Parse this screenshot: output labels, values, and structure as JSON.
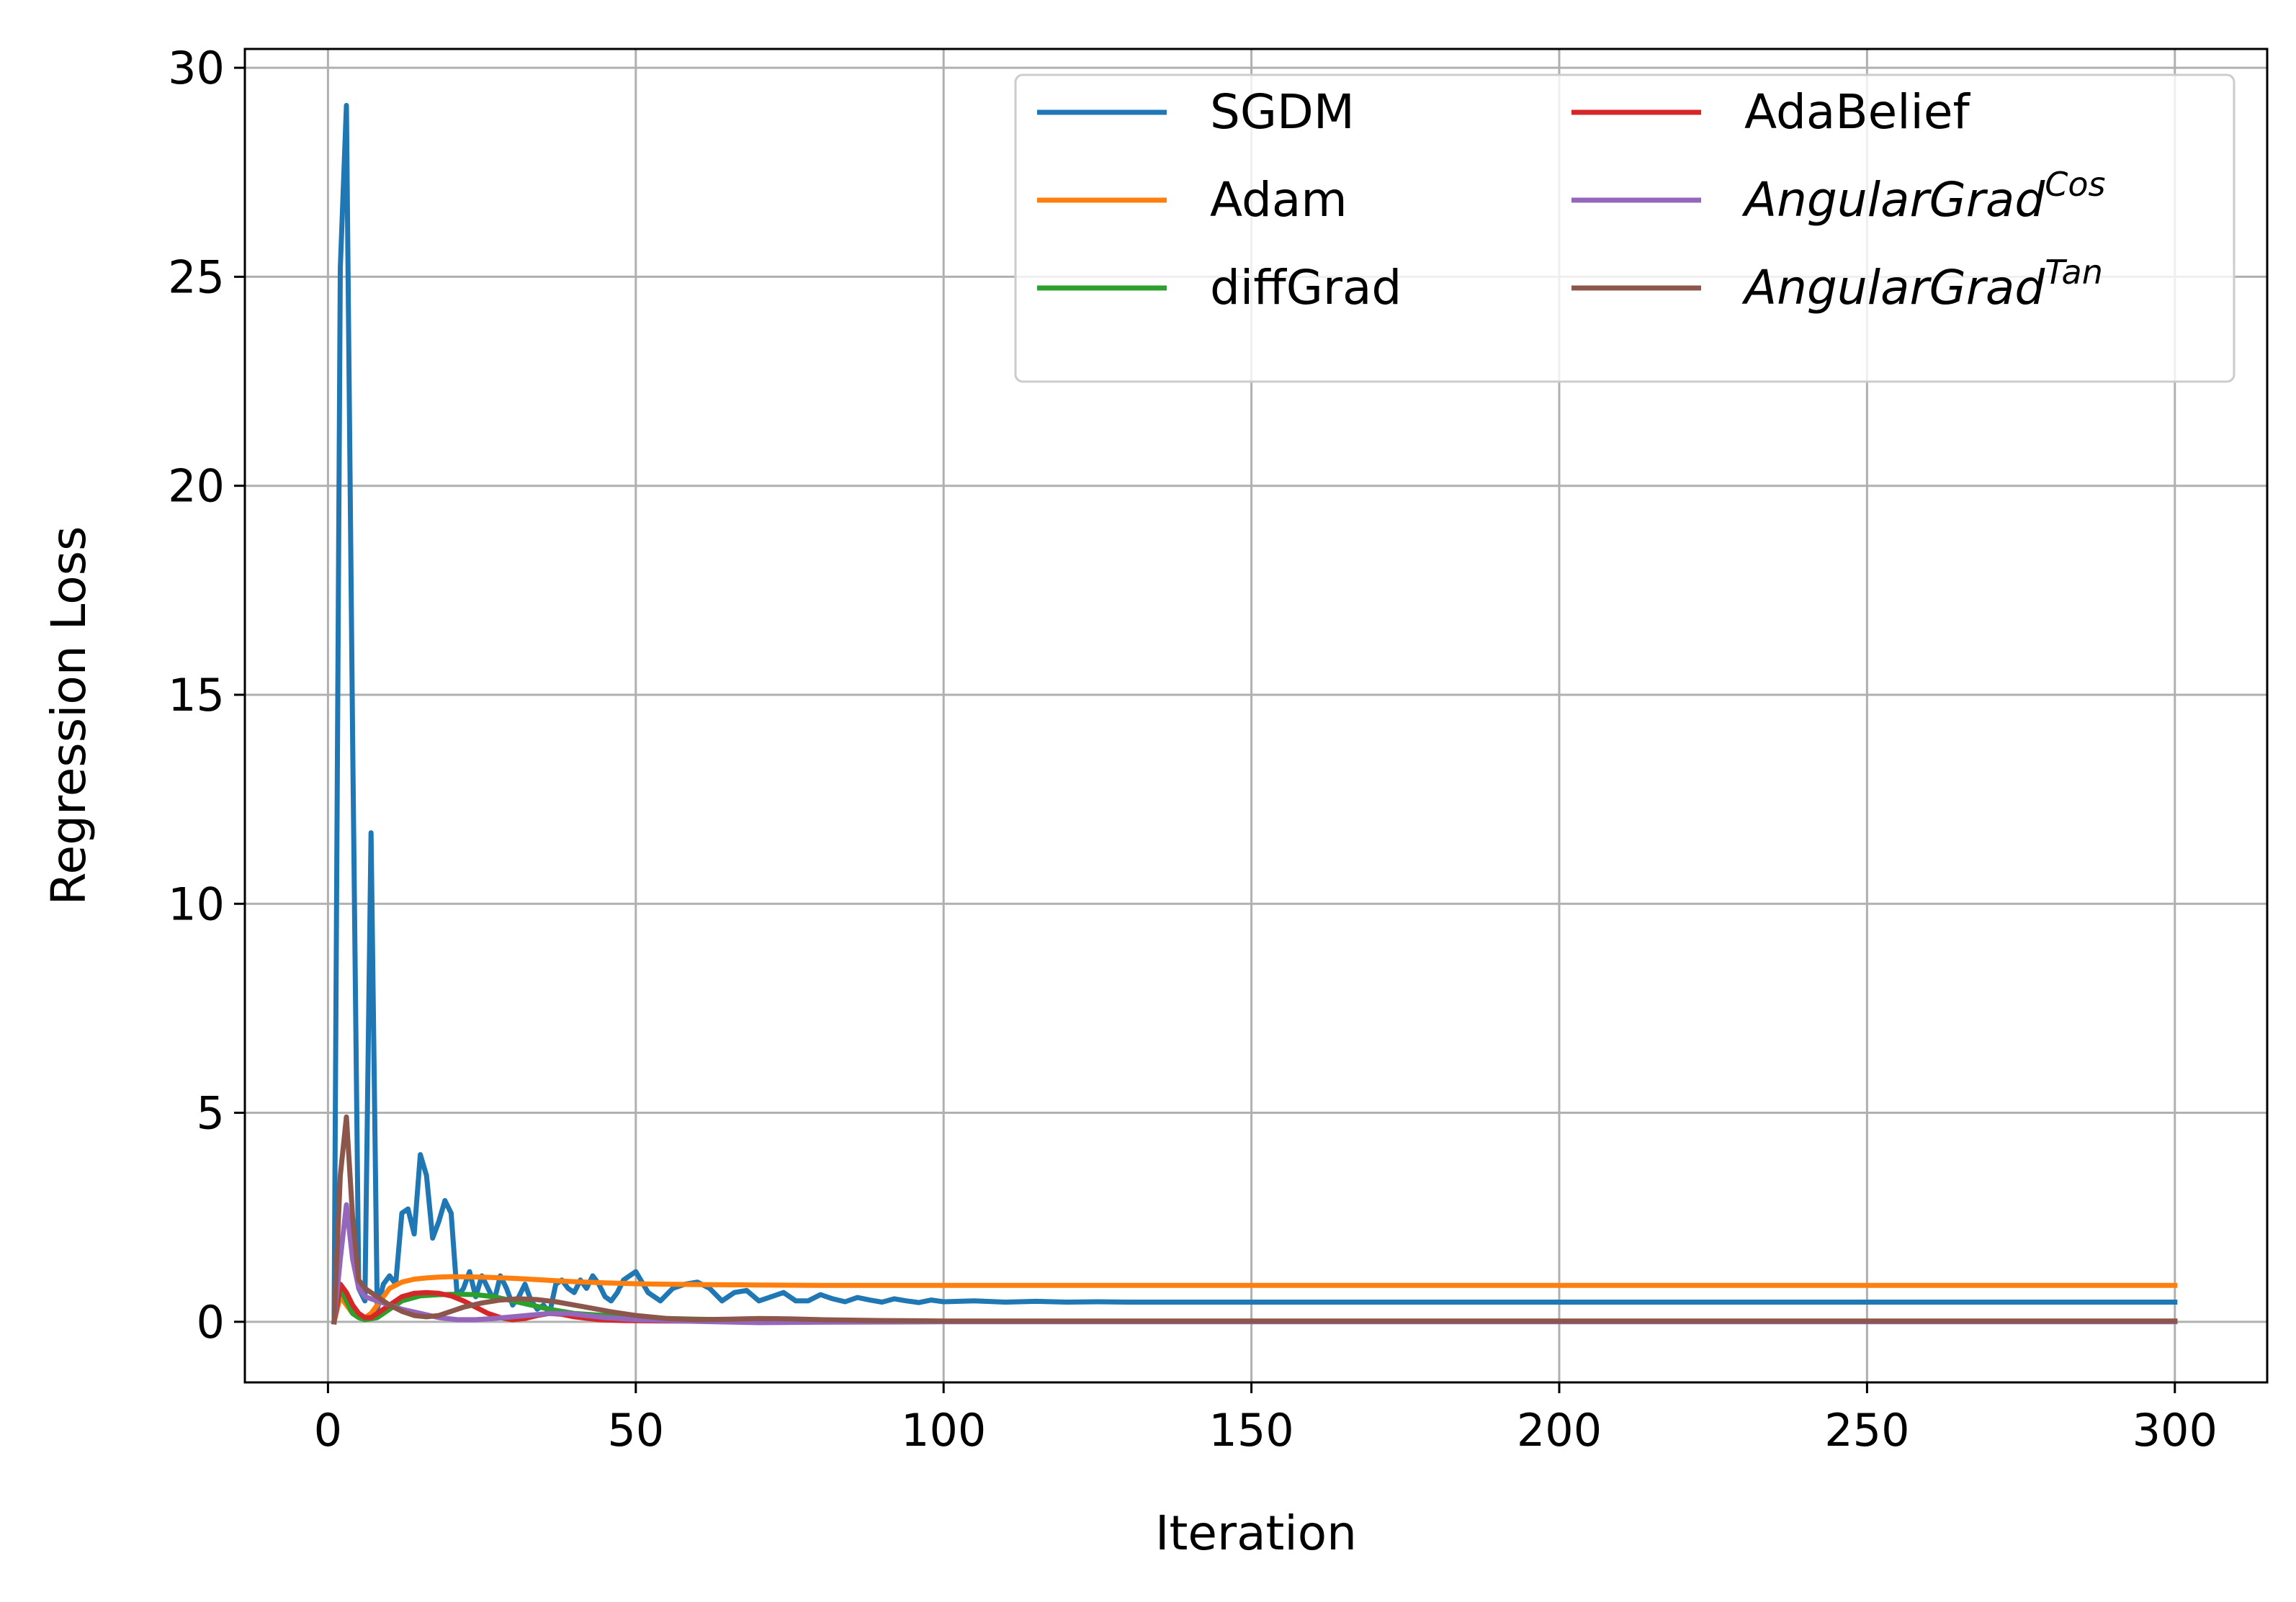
{
  "chart_data": {
    "type": "line",
    "title": "",
    "xlabel": "Iteration",
    "ylabel": "Regression Loss",
    "xlim": [
      -13.5,
      315
    ],
    "ylim": [
      -1.45,
      30.45
    ],
    "xticks": [
      0,
      50,
      100,
      150,
      200,
      250,
      300
    ],
    "yticks": [
      0,
      5,
      10,
      15,
      20,
      25,
      30
    ],
    "grid": true,
    "legend_position": "top-right",
    "legend_columns": 2,
    "series": [
      {
        "name": "SGDM",
        "color": "#1f77b4",
        "points": [
          [
            1,
            0
          ],
          [
            2,
            25.2
          ],
          [
            3,
            29.1
          ],
          [
            4,
            14
          ],
          [
            5,
            0.8
          ],
          [
            6,
            0.5
          ],
          [
            7,
            11.7
          ],
          [
            8,
            0.3
          ],
          [
            9,
            0.9
          ],
          [
            10,
            1.1
          ],
          [
            11,
            0.9
          ],
          [
            12,
            2.6
          ],
          [
            13,
            2.7
          ],
          [
            14,
            2.1
          ],
          [
            15,
            4.0
          ],
          [
            16,
            3.5
          ],
          [
            17,
            2.0
          ],
          [
            18,
            2.4
          ],
          [
            19,
            2.9
          ],
          [
            20,
            2.6
          ],
          [
            21,
            0.6
          ],
          [
            22,
            0.8
          ],
          [
            23,
            1.2
          ],
          [
            24,
            0.6
          ],
          [
            25,
            1.1
          ],
          [
            26,
            0.8
          ],
          [
            27,
            0.5
          ],
          [
            28,
            1.1
          ],
          [
            29,
            0.8
          ],
          [
            30,
            0.4
          ],
          [
            31,
            0.6
          ],
          [
            32,
            0.9
          ],
          [
            33,
            0.5
          ],
          [
            34,
            0.3
          ],
          [
            35,
            0.4
          ],
          [
            36,
            0.2
          ],
          [
            37,
            0.9
          ],
          [
            38,
            1.0
          ],
          [
            39,
            0.8
          ],
          [
            40,
            0.7
          ],
          [
            41,
            1.0
          ],
          [
            42,
            0.8
          ],
          [
            43,
            1.1
          ],
          [
            44,
            0.9
          ],
          [
            45,
            0.6
          ],
          [
            46,
            0.5
          ],
          [
            47,
            0.7
          ],
          [
            48,
            1.0
          ],
          [
            49,
            1.1
          ],
          [
            50,
            1.2
          ],
          [
            52,
            0.7
          ],
          [
            54,
            0.5
          ],
          [
            56,
            0.8
          ],
          [
            58,
            0.9
          ],
          [
            60,
            0.95
          ],
          [
            62,
            0.8
          ],
          [
            64,
            0.5
          ],
          [
            66,
            0.7
          ],
          [
            68,
            0.75
          ],
          [
            70,
            0.5
          ],
          [
            72,
            0.6
          ],
          [
            74,
            0.7
          ],
          [
            76,
            0.5
          ],
          [
            78,
            0.5
          ],
          [
            80,
            0.65
          ],
          [
            82,
            0.55
          ],
          [
            84,
            0.48
          ],
          [
            86,
            0.58
          ],
          [
            88,
            0.52
          ],
          [
            90,
            0.47
          ],
          [
            92,
            0.55
          ],
          [
            94,
            0.5
          ],
          [
            96,
            0.46
          ],
          [
            98,
            0.52
          ],
          [
            100,
            0.48
          ],
          [
            105,
            0.5
          ],
          [
            110,
            0.47
          ],
          [
            115,
            0.49
          ],
          [
            120,
            0.47
          ],
          [
            125,
            0.48
          ],
          [
            130,
            0.47
          ],
          [
            140,
            0.47
          ],
          [
            150,
            0.47
          ],
          [
            175,
            0.47
          ],
          [
            200,
            0.47
          ],
          [
            250,
            0.47
          ],
          [
            300,
            0.47
          ]
        ]
      },
      {
        "name": "Adam",
        "color": "#ff7f0e",
        "points": [
          [
            1,
            0
          ],
          [
            2,
            0.6
          ],
          [
            3,
            0.4
          ],
          [
            4,
            0.2
          ],
          [
            5,
            0.1
          ],
          [
            6,
            0.1
          ],
          [
            7,
            0.2
          ],
          [
            8,
            0.4
          ],
          [
            9,
            0.6
          ],
          [
            10,
            0.8
          ],
          [
            12,
            0.95
          ],
          [
            14,
            1.02
          ],
          [
            16,
            1.05
          ],
          [
            18,
            1.07
          ],
          [
            20,
            1.08
          ],
          [
            25,
            1.07
          ],
          [
            30,
            1.04
          ],
          [
            35,
            1.0
          ],
          [
            40,
            0.96
          ],
          [
            45,
            0.93
          ],
          [
            50,
            0.91
          ],
          [
            55,
            0.9
          ],
          [
            60,
            0.89
          ],
          [
            70,
            0.88
          ],
          [
            80,
            0.87
          ],
          [
            100,
            0.87
          ],
          [
            150,
            0.87
          ],
          [
            200,
            0.87
          ],
          [
            250,
            0.87
          ],
          [
            300,
            0.87
          ]
        ]
      },
      {
        "name": "diffGrad",
        "color": "#2ca02c",
        "points": [
          [
            1,
            0
          ],
          [
            2,
            0.8
          ],
          [
            3,
            0.5
          ],
          [
            4,
            0.2
          ],
          [
            5,
            0.1
          ],
          [
            6,
            0.05
          ],
          [
            8,
            0.1
          ],
          [
            10,
            0.3
          ],
          [
            12,
            0.5
          ],
          [
            15,
            0.62
          ],
          [
            18,
            0.65
          ],
          [
            21,
            0.66
          ],
          [
            24,
            0.65
          ],
          [
            27,
            0.6
          ],
          [
            30,
            0.5
          ],
          [
            33,
            0.4
          ],
          [
            36,
            0.3
          ],
          [
            40,
            0.2
          ],
          [
            45,
            0.15
          ],
          [
            50,
            0.1
          ],
          [
            55,
            0.08
          ],
          [
            60,
            0.06
          ],
          [
            70,
            0.04
          ],
          [
            80,
            0.02
          ],
          [
            100,
            0.01
          ],
          [
            150,
            0.01
          ],
          [
            200,
            0.01
          ],
          [
            300,
            0.01
          ]
        ]
      },
      {
        "name": "AdaBelief",
        "color": "#d62728",
        "points": [
          [
            1,
            0
          ],
          [
            2,
            0.9
          ],
          [
            3,
            0.7
          ],
          [
            4,
            0.4
          ],
          [
            5,
            0.2
          ],
          [
            6,
            0.1
          ],
          [
            7,
            0.1
          ],
          [
            8,
            0.2
          ],
          [
            10,
            0.4
          ],
          [
            12,
            0.6
          ],
          [
            14,
            0.68
          ],
          [
            16,
            0.7
          ],
          [
            18,
            0.68
          ],
          [
            20,
            0.62
          ],
          [
            22,
            0.5
          ],
          [
            24,
            0.35
          ],
          [
            26,
            0.2
          ],
          [
            28,
            0.1
          ],
          [
            30,
            0.05
          ],
          [
            32,
            0.08
          ],
          [
            34,
            0.15
          ],
          [
            36,
            0.2
          ],
          [
            38,
            0.18
          ],
          [
            40,
            0.12
          ],
          [
            44,
            0.05
          ],
          [
            48,
            0.03
          ],
          [
            55,
            0.02
          ],
          [
            70,
            0.01
          ],
          [
            100,
            0.01
          ],
          [
            200,
            0.01
          ],
          [
            300,
            0.01
          ]
        ]
      },
      {
        "name": "AngularGrad",
        "sup": "Cos",
        "color": "#9467bd",
        "points": [
          [
            1,
            0
          ],
          [
            2,
            1.5
          ],
          [
            3,
            2.8
          ],
          [
            4,
            1.5
          ],
          [
            5,
            0.8
          ],
          [
            6,
            0.6
          ],
          [
            8,
            0.5
          ],
          [
            10,
            0.4
          ],
          [
            12,
            0.3
          ],
          [
            15,
            0.2
          ],
          [
            18,
            0.1
          ],
          [
            21,
            0.05
          ],
          [
            24,
            0.05
          ],
          [
            27,
            0.08
          ],
          [
            30,
            0.12
          ],
          [
            33,
            0.16
          ],
          [
            36,
            0.2
          ],
          [
            39,
            0.2
          ],
          [
            42,
            0.15
          ],
          [
            45,
            0.1
          ],
          [
            50,
            0.05
          ],
          [
            60,
            0.01
          ],
          [
            70,
            -0.02
          ],
          [
            80,
            -0.01
          ],
          [
            100,
            0.0
          ],
          [
            150,
            0.0
          ],
          [
            200,
            0.0
          ],
          [
            300,
            0.0
          ]
        ]
      },
      {
        "name": "AngularGrad",
        "sup": "Tan",
        "color": "#8c564b",
        "points": [
          [
            1,
            0
          ],
          [
            2,
            3.5
          ],
          [
            3,
            4.9
          ],
          [
            4,
            2.5
          ],
          [
            5,
            1.0
          ],
          [
            6,
            0.8
          ],
          [
            8,
            0.6
          ],
          [
            10,
            0.4
          ],
          [
            12,
            0.25
          ],
          [
            14,
            0.15
          ],
          [
            16,
            0.12
          ],
          [
            18,
            0.15
          ],
          [
            20,
            0.25
          ],
          [
            22,
            0.35
          ],
          [
            25,
            0.45
          ],
          [
            28,
            0.52
          ],
          [
            31,
            0.55
          ],
          [
            34,
            0.53
          ],
          [
            37,
            0.48
          ],
          [
            40,
            0.4
          ],
          [
            43,
            0.32
          ],
          [
            46,
            0.24
          ],
          [
            50,
            0.15
          ],
          [
            55,
            0.08
          ],
          [
            60,
            0.05
          ],
          [
            65,
            0.06
          ],
          [
            70,
            0.08
          ],
          [
            75,
            0.07
          ],
          [
            80,
            0.05
          ],
          [
            90,
            0.03
          ],
          [
            100,
            0.02
          ],
          [
            150,
            0.02
          ],
          [
            200,
            0.02
          ],
          [
            250,
            0.02
          ],
          [
            300,
            0.02
          ]
        ]
      }
    ]
  }
}
